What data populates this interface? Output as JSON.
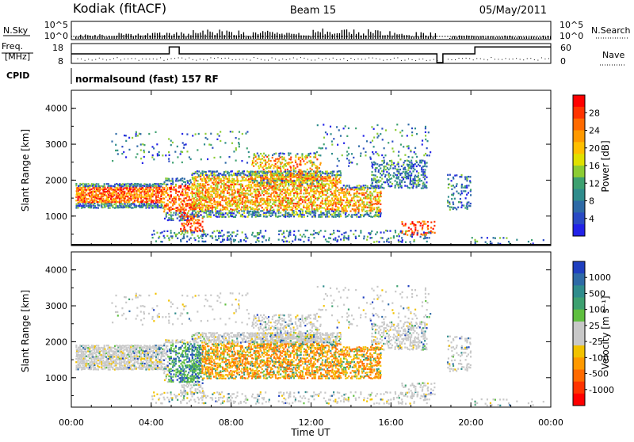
{
  "header": {
    "station": "Kodiak (fitACF)",
    "beam": "Beam 15",
    "date": "05/May/2011"
  },
  "strip_labels": {
    "nsky": "N.Sky",
    "nsearch": "N.Search",
    "freq_line1": "Freq.",
    "freq_line2": "[MHz]",
    "nave": "Nave",
    "cpid": "CPID",
    "cpid_value": "normalsound (fast) 157 RF",
    "noise_top": "10^5",
    "noise_bottom": "10^0",
    "freq_top": "18",
    "freq_bottom": "8",
    "nave_top": "60",
    "nave_bottom": "0"
  },
  "power_panel": {
    "ylabel": "Slant Range [km]",
    "colorbar_label": "Power [dB]",
    "colorbar_ticks": [
      "28",
      "24",
      "20",
      "16",
      "12",
      "8",
      "4"
    ],
    "colorbar_colors": [
      "#ff0000",
      "#ff3300",
      "#ff6a00",
      "#ff9900",
      "#ffbf00",
      "#e0e000",
      "#8ccc33",
      "#3da070",
      "#2f8c8c",
      "#2e6aa6",
      "#2a4ac4",
      "#2222e8"
    ]
  },
  "velocity_panel": {
    "ylabel": "Slant Range [km]",
    "colorbar_label": "Velocity [m s⁻¹]",
    "colorbar_ticks": [
      "1000",
      "500",
      "100",
      "25",
      "-25",
      "-100",
      "-500",
      "-1000"
    ],
    "colorbar_colors": [
      "#1f3fbf",
      "#2e6aa6",
      "#2f8c8c",
      "#3da070",
      "#5fbf3f",
      "#c8c8c8",
      "#c8c8c8",
      "#f2c200",
      "#ff9900",
      "#ff6a00",
      "#ff3300",
      "#ff0000"
    ]
  },
  "xaxis": {
    "label": "Time UT",
    "ticks": [
      "00:00",
      "04:00",
      "08:00",
      "12:00",
      "16:00",
      "20:00",
      "00:00"
    ]
  },
  "chart_data": [
    {
      "type": "line",
      "name": "noise",
      "x": [
        0,
        2,
        4,
        6,
        8,
        10,
        12,
        14,
        16,
        18,
        18.5,
        19,
        20,
        22,
        24
      ],
      "series": [
        {
          "name": "N.Sky",
          "values": [
            0.4,
            0.5,
            0.6,
            0.8,
            0.7,
            0.6,
            0.9,
            0.8,
            0.6,
            0.5,
            0,
            0.4,
            0.3,
            0.3,
            0.3
          ]
        }
      ],
      "ylim": [
        0,
        5
      ]
    },
    {
      "type": "line",
      "name": "frequency",
      "x": [
        0,
        4.9,
        4.9,
        5.4,
        5.4,
        18.3,
        18.3,
        18.6,
        18.6,
        20.2,
        20.2,
        24
      ],
      "series": [
        {
          "name": "Freq.",
          "values": [
            13,
            13,
            17,
            17,
            13,
            13,
            8,
            8,
            13,
            13,
            17,
            17
          ]
        }
      ],
      "ylim": [
        8,
        18
      ]
    },
    {
      "type": "heatmap",
      "name": "power",
      "xlim": [
        0,
        24
      ],
      "ylim": [
        180,
        4500
      ],
      "yticks": [
        1000,
        2000,
        3000,
        4000
      ]
    },
    {
      "type": "heatmap",
      "name": "velocity",
      "xlim": [
        0,
        24
      ],
      "ylim": [
        180,
        4500
      ],
      "yticks": [
        1000,
        2000,
        3000,
        4000
      ]
    }
  ]
}
